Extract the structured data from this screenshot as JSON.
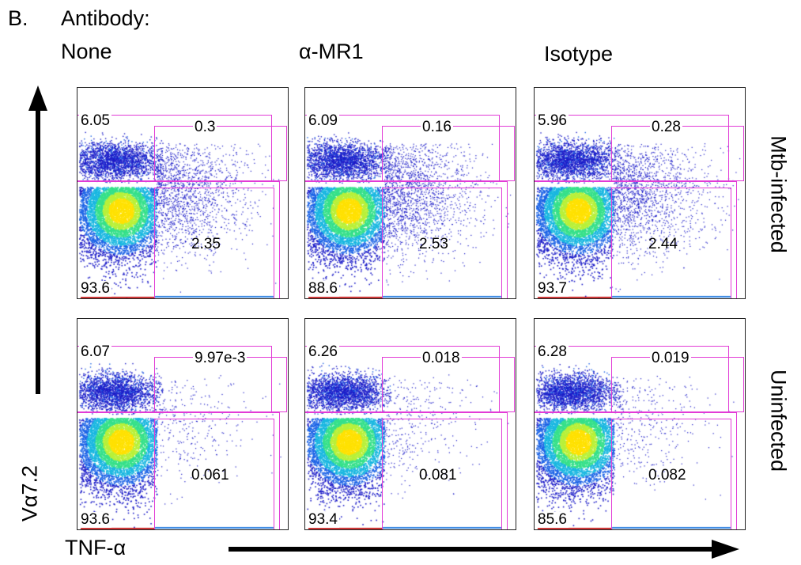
{
  "panel_label": "B.",
  "antibody_heading": "Antibody:",
  "columns": [
    "None",
    "α-MR1",
    "Isotype"
  ],
  "rows": [
    "Mtb-infected",
    "Uninfected"
  ],
  "y_axis_label": "Vα7.2",
  "x_axis_label": "TNF-α",
  "plots": [
    [
      {
        "upper_left": "6.05",
        "upper_right": "0.3",
        "lower_right": "2.35",
        "lower_left": "93.6",
        "tnf_spread": 0.55
      },
      {
        "upper_left": "6.09",
        "upper_right": "0.16",
        "lower_right": "2.53",
        "lower_left": "88.6",
        "tnf_spread": 0.6
      },
      {
        "upper_left": "5.96",
        "upper_right": "0.28",
        "lower_right": "2.44",
        "lower_left": "93.7",
        "tnf_spread": 0.55
      }
    ],
    [
      {
        "upper_left": "6.07",
        "upper_right": "9.97e-3",
        "lower_right": "0.061",
        "lower_left": "93.6",
        "tnf_spread": 0.1
      },
      {
        "upper_left": "6.26",
        "upper_right": "0.018",
        "lower_right": "0.081",
        "lower_left": "93.4",
        "tnf_spread": 0.12
      },
      {
        "upper_left": "6.28",
        "upper_right": "0.019",
        "lower_right": "0.082",
        "lower_left": "85.6",
        "tnf_spread": 0.12
      }
    ]
  ],
  "colors": {
    "gate": "#e23bd6",
    "arrow": "#000000"
  }
}
